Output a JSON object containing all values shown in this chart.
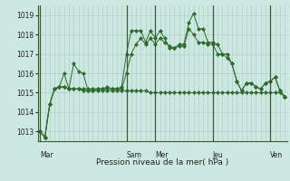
{
  "bg_color": "#cce8e0",
  "grid_color": "#aaccc4",
  "line_color": "#2d6a2d",
  "marker_color": "#2d6a2d",
  "xlabel": "Pression niveau de la mer( hPa )",
  "ylim": [
    1012.5,
    1019.5
  ],
  "yticks": [
    1013,
    1014,
    1015,
    1016,
    1017,
    1018,
    1019
  ],
  "day_labels": [
    "Mar",
    "Sam",
    "Mer",
    "Jeu",
    "Ven"
  ],
  "day_positions": [
    0,
    18,
    24,
    36,
    48
  ],
  "total_points": 52,
  "series": [
    [
      1013.0,
      1012.7,
      1014.4,
      1015.2,
      1015.3,
      1016.0,
      1015.2,
      1016.5,
      1016.1,
      1016.0,
      1015.1,
      1015.1,
      1015.2,
      1015.2,
      1015.3,
      1015.2,
      1015.2,
      1015.3,
      1017.0,
      1018.2,
      1018.2,
      1018.2,
      1017.6,
      1018.2,
      1017.8,
      1018.2,
      1017.8,
      1017.3,
      1017.3,
      1017.5,
      1017.5,
      1018.6,
      1019.1,
      1018.3,
      1018.3,
      1017.6,
      1017.6,
      1017.5,
      1017.0,
      1017.0,
      1016.5,
      1015.6,
      1015.1,
      1015.5,
      1015.5,
      1015.3,
      1015.2,
      1015.5,
      1015.6,
      1015.8,
      1015.1,
      1014.8
    ],
    [
      1013.0,
      1012.7,
      1014.4,
      1015.2,
      1015.3,
      1015.3,
      1015.2,
      1015.2,
      1015.2,
      1015.1,
      1015.1,
      1015.1,
      1015.1,
      1015.1,
      1015.1,
      1015.1,
      1015.1,
      1015.1,
      1015.1,
      1015.1,
      1015.1,
      1015.1,
      1015.1,
      1015.0,
      1015.0,
      1015.0,
      1015.0,
      1015.0,
      1015.0,
      1015.0,
      1015.0,
      1015.0,
      1015.0,
      1015.0,
      1015.0,
      1015.0,
      1015.0,
      1015.0,
      1015.0,
      1015.0,
      1015.0,
      1015.0,
      1015.0,
      1015.0,
      1015.0,
      1015.0,
      1015.0,
      1015.0,
      1015.0,
      1015.0,
      1015.0,
      1014.8
    ],
    [
      1013.0,
      1012.7,
      1014.4,
      1015.2,
      1015.3,
      1015.3,
      1015.2,
      1015.2,
      1015.2,
      1015.2,
      1015.2,
      1015.2,
      1015.2,
      1015.2,
      1015.2,
      1015.2,
      1015.2,
      1015.2,
      1016.0,
      1017.0,
      1017.5,
      1017.8,
      1017.5,
      1017.8,
      1017.5,
      1017.8,
      1017.6,
      1017.4,
      1017.3,
      1017.4,
      1017.4,
      1018.3,
      1018.0,
      1017.6,
      1017.6,
      1017.5,
      1017.5,
      1017.0,
      1017.0,
      1016.8,
      1016.5,
      1015.6,
      1015.1,
      1015.5,
      1015.5,
      1015.3,
      1015.2,
      1015.5,
      1015.6,
      1015.8,
      1015.1,
      1014.8
    ]
  ]
}
